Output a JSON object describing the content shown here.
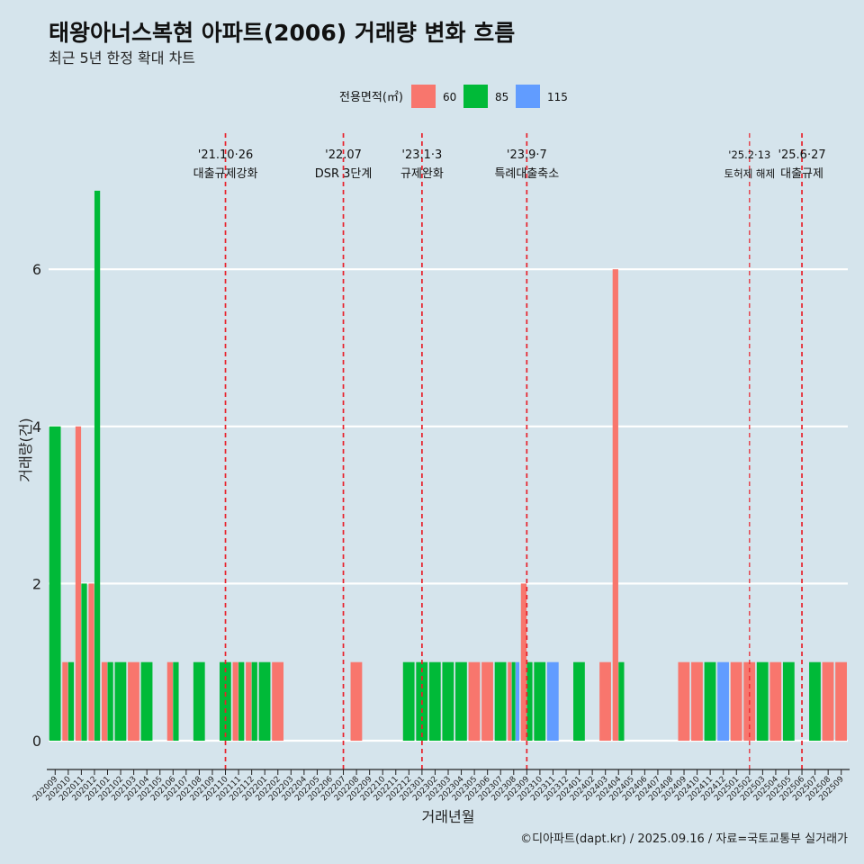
{
  "chart_data": {
    "type": "bar",
    "title": "태왕아너스복현 아파트(2006) 거래량 변화 흐름",
    "subtitle": "최근 5년 한정 확대 차트",
    "xlabel": "거래년월",
    "ylabel": "거래량(건)",
    "ylim": [
      -0.3,
      7.1
    ],
    "yticks": [
      0,
      2,
      4,
      6
    ],
    "legend": {
      "title": "전용면적(㎡)",
      "placement": "top",
      "items": [
        {
          "name": "60",
          "color": "#f8766d"
        },
        {
          "name": "85",
          "color": "#00ba38"
        },
        {
          "name": "115",
          "color": "#619cff"
        }
      ]
    },
    "categories": [
      "202009",
      "202010",
      "202011",
      "202012",
      "202101",
      "202102",
      "202103",
      "202104",
      "202105",
      "202106",
      "202107",
      "202108",
      "202109",
      "202110",
      "202111",
      "202112",
      "202201",
      "202202",
      "202203",
      "202204",
      "202205",
      "202206",
      "202207",
      "202208",
      "202209",
      "202210",
      "202211",
      "202212",
      "202301",
      "202302",
      "202303",
      "202304",
      "202305",
      "202306",
      "202307",
      "202308",
      "202309",
      "202310",
      "202311",
      "202312",
      "202401",
      "202402",
      "202403",
      "202404",
      "202405",
      "202406",
      "202407",
      "202408",
      "202409",
      "202410",
      "202411",
      "202412",
      "202501",
      "202502",
      "202503",
      "202504",
      "202505",
      "202506",
      "202507",
      "202508",
      "202509"
    ],
    "series": [
      {
        "name": "60",
        "color": "#f8766d",
        "values": [
          0,
          1,
          4,
          2,
          1,
          0,
          1,
          0,
          0,
          1,
          0,
          0,
          0,
          0,
          1,
          1,
          0,
          1,
          0,
          0,
          0,
          0,
          0,
          1,
          0,
          0,
          0,
          0,
          0,
          0,
          0,
          0,
          1,
          1,
          0,
          1,
          2,
          0,
          0,
          0,
          0,
          0,
          1,
          6,
          0,
          0,
          0,
          0,
          1,
          1,
          0,
          0,
          1,
          1,
          0,
          1,
          0,
          0,
          0,
          1,
          1
        ]
      },
      {
        "name": "85",
        "color": "#00ba38",
        "values": [
          4,
          1,
          2,
          7,
          1,
          1,
          0,
          1,
          0,
          1,
          0,
          1,
          0,
          1,
          1,
          1,
          1,
          0,
          0,
          0,
          0,
          0,
          0,
          0,
          0,
          0,
          0,
          1,
          1,
          1,
          1,
          1,
          0,
          0,
          1,
          1,
          1,
          1,
          0,
          0,
          1,
          0,
          0,
          1,
          0,
          0,
          0,
          0,
          0,
          0,
          1,
          0,
          0,
          0,
          1,
          0,
          1,
          0,
          1,
          0,
          0
        ]
      },
      {
        "name": "115",
        "color": "#619cff",
        "values": [
          0,
          0,
          0,
          0,
          0,
          0,
          0,
          0,
          0,
          0,
          0,
          0,
          0,
          0,
          0,
          0,
          0,
          0,
          0,
          0,
          0,
          0,
          0,
          0,
          0,
          0,
          0,
          0,
          0,
          0,
          0,
          0,
          0,
          0,
          0,
          1,
          0,
          0,
          1,
          0,
          0,
          0,
          0,
          0,
          0,
          0,
          0,
          0,
          0,
          0,
          0,
          1,
          0,
          0,
          0,
          0,
          0,
          0,
          0,
          0,
          0
        ]
      }
    ],
    "events": [
      {
        "x": "202110",
        "date": "'21.10·26",
        "label": "대출규제강화",
        "small": false
      },
      {
        "x": "202207",
        "date": "'22.07",
        "label": "DSR 3단계",
        "small": false
      },
      {
        "x": "202301",
        "date": "'23.1·3",
        "label": "규제완화",
        "small": false
      },
      {
        "x": "202309",
        "date": "'23.9·7",
        "label": "특례대출축소",
        "small": false
      },
      {
        "x": "202502",
        "date": "'25.2·13",
        "label": "토허제 해제",
        "small": true
      },
      {
        "x": "202506",
        "date": "'25.6·27",
        "label": "대출규제",
        "small": false
      }
    ],
    "grid": true
  },
  "caption": "©디아파트(dapt.kr) / 2025.09.16 / 자료=국토교통부 실거래가"
}
